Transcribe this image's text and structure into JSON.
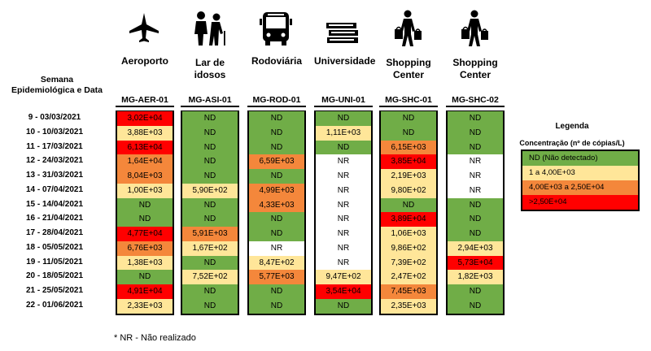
{
  "header": {
    "semana_label": "Semana",
    "epi_label": "Epidemiológica e Data"
  },
  "locations": [
    {
      "name": "Aeroporto",
      "code": "MG-AER-01",
      "icon": "airplane-icon"
    },
    {
      "name": "Lar de idosos",
      "code": "MG-ASI-01",
      "icon": "elderly-care-icon"
    },
    {
      "name": "Rodoviária",
      "code": "MG-ROD-01",
      "icon": "bus-icon"
    },
    {
      "name": "Universidade",
      "code": "MG-UNI-01",
      "icon": "books-icon"
    },
    {
      "name": "Shopping Center",
      "code": "MG-SHC-01",
      "icon": "shopper-icon"
    },
    {
      "name": "Shopping Center",
      "code": "MG-SHC-02",
      "icon": "shopper-icon"
    }
  ],
  "weeks": [
    "9 - 03/03/2021",
    "10 - 10/03/2021",
    "11 - 17/03/2021",
    "12 - 24/03/2021",
    "13 - 31/03/2021",
    "14 - 07/04/2021",
    "15 - 14/04/2021",
    "16 - 21/04/2021",
    "17 - 28/04/2021",
    "18 - 05/05/2021",
    "19 - 11/05/2021",
    "20 - 18/05/2021",
    "21 - 25/05/2021",
    "22 - 01/06/2021"
  ],
  "chart_data": {
    "type": "table",
    "columns": [
      "MG-AER-01",
      "MG-ASI-01",
      "MG-ROD-01",
      "MG-UNI-01",
      "MG-SHC-01",
      "MG-SHC-02"
    ],
    "rows": [
      [
        "3,02E+04",
        "ND",
        "ND",
        "ND",
        "ND",
        "ND"
      ],
      [
        "3,88E+03",
        "ND",
        "ND",
        "1,11E+03",
        "ND",
        "ND"
      ],
      [
        "6,13E+04",
        "ND",
        "ND",
        "ND",
        "6,15E+03",
        "ND"
      ],
      [
        "1,64E+04",
        "ND",
        "6,59E+03",
        "NR",
        "3,85E+04",
        "NR"
      ],
      [
        "8,04E+03",
        "ND",
        "ND",
        "NR",
        "2,19E+03",
        "NR"
      ],
      [
        "1,00E+03",
        "5,90E+02",
        "4,99E+03",
        "NR",
        "9,80E+02",
        "NR"
      ],
      [
        "ND",
        "ND",
        "4,33E+03",
        "NR",
        "ND",
        "ND"
      ],
      [
        "ND",
        "ND",
        "ND",
        "NR",
        "3,89E+04",
        "ND"
      ],
      [
        "4,77E+04",
        "5,91E+03",
        "ND",
        "NR",
        "1,06E+03",
        "ND"
      ],
      [
        "6,76E+03",
        "1,67E+02",
        "NR",
        "NR",
        "9,86E+02",
        "2,94E+03"
      ],
      [
        "1,38E+03",
        "ND",
        "8,47E+02",
        "NR",
        "7,39E+02",
        "5,73E+04"
      ],
      [
        "ND",
        "7,52E+02",
        "5,77E+03",
        "9,47E+02",
        "2,47E+02",
        "1,82E+03"
      ],
      [
        "4,91E+04",
        "ND",
        "ND",
        "3,54E+04",
        "7,45E+03",
        "ND"
      ],
      [
        "2,33E+03",
        "ND",
        "ND",
        "ND",
        "2,35E+03",
        "ND"
      ]
    ]
  },
  "legend": {
    "title": "Legenda",
    "subtitle": "Concentração (nº de cópias/L)",
    "items": [
      {
        "label": "ND (Não detectado)",
        "color": "#70ad47"
      },
      {
        "label": "1 a 4,00E+03",
        "color": "#ffe699"
      },
      {
        "label": "4,00E+03 a 2,50E+04",
        "color": "#f4873b"
      },
      {
        "label": ">2,50E+04",
        "color": "#ff0000"
      }
    ]
  },
  "colors": {
    "nd": "#70ad47",
    "low": "#ffe699",
    "mid": "#f4873b",
    "high": "#ff0000",
    "nr": "#ffffff"
  },
  "footnote": "* NR - Não realizado"
}
